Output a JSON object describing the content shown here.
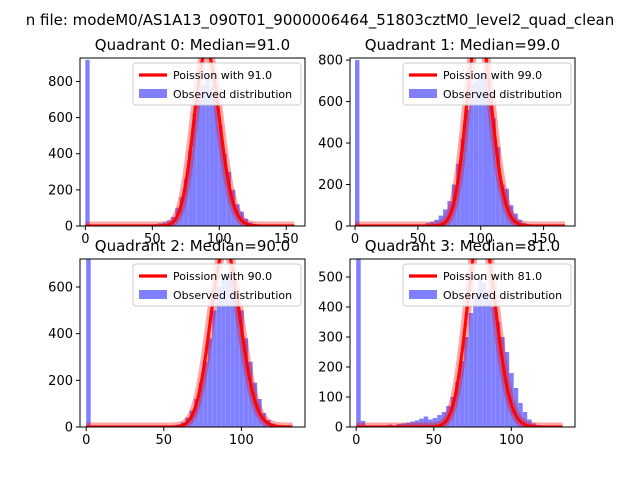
{
  "suptitle": "n file: modeM0/AS1A13_090T01_9000006464_51803cztM0_level2_quad_clean",
  "chart_data": [
    {
      "type": "bar",
      "title": "Quadrant 0: Median=91.0",
      "xlabel": "",
      "ylabel": "",
      "xlim": [
        -4,
        164
      ],
      "ylim": [
        0,
        930
      ],
      "xticks": [
        0,
        50,
        100,
        150
      ],
      "yticks": [
        0,
        200,
        400,
        600,
        800
      ],
      "bin_width": 3.2,
      "hist_x": [
        0,
        51.2,
        54.4,
        57.6,
        60.8,
        64,
        67.2,
        70.4,
        73.6,
        76.8,
        80,
        83.2,
        86.4,
        89.6,
        92.8,
        96,
        99.2,
        102.4,
        105.6,
        108.8,
        112,
        115.2,
        118.4,
        121.6,
        124.8,
        128,
        131.2
      ],
      "hist_values": [
        920,
        10,
        15,
        20,
        30,
        50,
        100,
        160,
        260,
        420,
        620,
        700,
        780,
        850,
        770,
        720,
        560,
        400,
        300,
        200,
        120,
        80,
        40,
        20,
        12,
        6,
        3
      ],
      "poisson_lambda": 91.0,
      "legend": [
        "Poission with 91.0",
        "Observed distribution"
      ],
      "legend_loc": "upper right",
      "colors": {
        "poisson": "#ff0000",
        "hist": "#8080ff"
      }
    },
    {
      "type": "bar",
      "title": "Quadrant 1: Median=99.0",
      "xlabel": "",
      "ylabel": "",
      "xlim": [
        -4,
        175
      ],
      "ylim": [
        0,
        810
      ],
      "xticks": [
        0,
        50,
        100,
        150
      ],
      "yticks": [
        0,
        200,
        400,
        600,
        800
      ],
      "bin_width": 3.5,
      "hist_x": [
        0,
        56,
        59.5,
        63,
        66.5,
        70,
        73.5,
        77,
        80.5,
        84,
        87.5,
        91,
        94.5,
        98,
        101.5,
        105,
        108.5,
        112,
        115.5,
        119,
        122.5,
        126,
        129.5,
        133,
        136.5,
        140
      ],
      "hist_values": [
        800,
        15,
        20,
        30,
        50,
        80,
        120,
        200,
        300,
        420,
        560,
        680,
        700,
        740,
        720,
        660,
        520,
        380,
        200,
        180,
        100,
        60,
        30,
        15,
        8,
        4
      ],
      "poisson_lambda": 99.0,
      "legend": [
        "Poission with 99.0",
        "Observed distribution"
      ],
      "legend_loc": "upper right",
      "colors": {
        "poisson": "#ff0000",
        "hist": "#8080ff"
      }
    },
    {
      "type": "bar",
      "title": "Quadrant 2: Median=90.0",
      "xlabel": "",
      "ylabel": "",
      "xlim": [
        -4,
        141
      ],
      "ylim": [
        0,
        720
      ],
      "xticks": [
        0,
        50,
        100
      ],
      "yticks": [
        0,
        200,
        400,
        600
      ],
      "bin_width": 2.9,
      "hist_x": [
        0,
        58,
        60.9,
        63.8,
        66.7,
        69.6,
        72.5,
        75.4,
        78.3,
        81.2,
        84.1,
        87,
        89.9,
        92.8,
        95.7,
        98.6,
        101.5,
        104.4,
        107.3,
        110.2,
        113.1,
        116,
        118.9,
        121.8,
        124.7
      ],
      "hist_values": [
        720,
        10,
        20,
        40,
        70,
        120,
        190,
        280,
        380,
        500,
        600,
        640,
        660,
        630,
        570,
        500,
        380,
        280,
        190,
        120,
        60,
        30,
        15,
        8,
        4
      ],
      "poisson_lambda": 90.0,
      "legend": [
        "Poission with 90.0",
        "Observed distribution"
      ],
      "legend_loc": "upper right",
      "colors": {
        "poisson": "#ff0000",
        "hist": "#8080ff"
      }
    },
    {
      "type": "bar",
      "title": "Quadrant 3: Median=81.0",
      "xlabel": "",
      "ylabel": "",
      "xlim": [
        -4,
        141
      ],
      "ylim": [
        0,
        560
      ],
      "xticks": [
        0,
        50,
        100
      ],
      "yticks": [
        0,
        100,
        200,
        300,
        400,
        500
      ],
      "bin_width": 2.9,
      "hist_x": [
        0,
        2.9,
        20.3,
        26.1,
        29,
        31.9,
        34.8,
        37.7,
        40.6,
        43.5,
        46.4,
        49.3,
        52.2,
        55.1,
        58,
        60.9,
        63.8,
        66.7,
        69.6,
        72.5,
        75.4,
        78.3,
        81.2,
        84.1,
        87,
        89.9,
        92.8,
        95.7,
        98.6,
        101.5,
        104.4,
        107.3,
        110.2,
        113.1,
        116,
        118.9
      ],
      "hist_values": [
        560,
        20,
        8,
        10,
        12,
        15,
        18,
        22,
        28,
        35,
        25,
        30,
        40,
        50,
        70,
        100,
        150,
        220,
        300,
        380,
        440,
        500,
        480,
        450,
        400,
        350,
        300,
        250,
        180,
        130,
        80,
        50,
        25,
        12,
        6,
        3
      ],
      "poisson_lambda": 81.0,
      "legend": [
        "Poission with 81.0",
        "Observed distribution"
      ],
      "legend_loc": "upper right",
      "colors": {
        "poisson": "#ff0000",
        "hist": "#8080ff"
      }
    }
  ]
}
